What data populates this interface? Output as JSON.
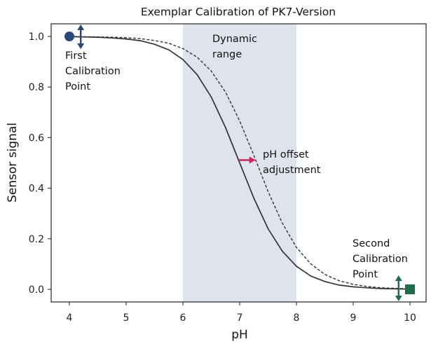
{
  "chart_data": {
    "type": "line",
    "title": "Exemplar Calibration of PK7-Version",
    "xlabel": "pH",
    "ylabel": "Sensor signal",
    "xlim": [
      3.7,
      10.3
    ],
    "ylim": [
      -0.05,
      1.05
    ],
    "xticks": [
      "4",
      "5",
      "6",
      "7",
      "8",
      "9",
      "10"
    ],
    "yticks": [
      "0.0",
      "0.2",
      "0.4",
      "0.6",
      "0.8",
      "1.0"
    ],
    "grid": false,
    "shaded_region": {
      "x": [
        6,
        8
      ],
      "label": "Dynamic range",
      "color": "#dfe3ec"
    },
    "x": [
      4,
      4.25,
      4.5,
      4.75,
      5,
      5.25,
      5.5,
      5.75,
      6,
      6.25,
      6.5,
      6.75,
      7,
      7.25,
      7.5,
      7.75,
      8,
      8.25,
      8.5,
      8.75,
      9,
      9.25,
      9.5,
      9.75,
      10
    ],
    "series": [
      {
        "style": "solid",
        "color": "#333333",
        "values": [
          0.999,
          0.998,
          0.997,
          0.994,
          0.99,
          0.983,
          0.969,
          0.947,
          0.909,
          0.849,
          0.76,
          0.64,
          0.5,
          0.36,
          0.24,
          0.151,
          0.091,
          0.053,
          0.031,
          0.017,
          0.01,
          0.006,
          0.003,
          0.002,
          0.001
        ]
      },
      {
        "style": "dashed",
        "color": "#333333",
        "values": [
          1.0,
          0.999,
          0.998,
          0.997,
          0.995,
          0.991,
          0.984,
          0.973,
          0.952,
          0.918,
          0.863,
          0.78,
          0.666,
          0.529,
          0.387,
          0.262,
          0.166,
          0.101,
          0.059,
          0.034,
          0.02,
          0.011,
          0.006,
          0.004,
          0.002
        ]
      }
    ],
    "annotations": {
      "dynamic_range": [
        "Dynamic",
        "range"
      ],
      "first_point": [
        "First",
        "Calibration",
        "Point"
      ],
      "offset": [
        "pH offset",
        "adjustment"
      ],
      "second_point": [
        "Second",
        "Calibration",
        "Point"
      ]
    },
    "markers": {
      "first_point": {
        "x": 4,
        "y": 1.0,
        "shape": "circle",
        "color": "#27497a"
      },
      "second_point": {
        "x": 10,
        "y": 0.0,
        "shape": "square",
        "color": "#1f6b4c"
      },
      "offset_arrow": {
        "from": 6.98,
        "to": 7.28,
        "y": 0.5,
        "color": "#d1245a"
      }
    }
  }
}
